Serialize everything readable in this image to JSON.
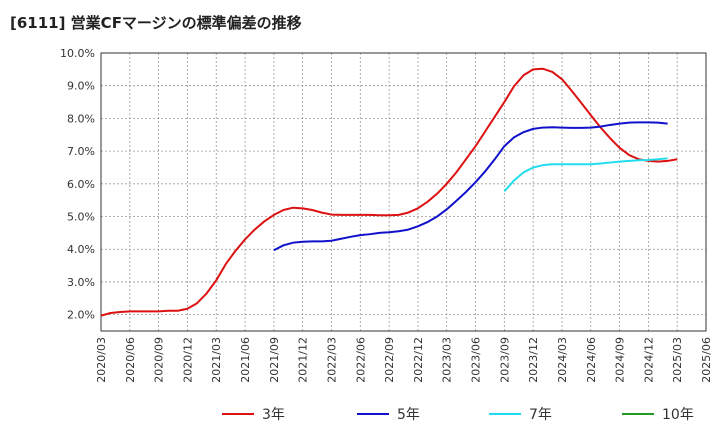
{
  "chart_data": {
    "type": "line",
    "title": "[6111]  営業CFマージンの標準偏差の推移",
    "xlabel": "",
    "ylabel": "",
    "ylim": [
      1.5,
      10.0
    ],
    "yticks": [
      "10.0%",
      "9.0%",
      "8.0%",
      "7.0%",
      "6.0%",
      "5.0%",
      "4.0%",
      "3.0%",
      "2.0%"
    ],
    "yticks_values": [
      10,
      9,
      8,
      7,
      6,
      5,
      4,
      3,
      2
    ],
    "xticks": [
      "2020/03",
      "2020/06",
      "2020/09",
      "2020/12",
      "2021/03",
      "2021/06",
      "2021/09",
      "2021/12",
      "2022/03",
      "2022/06",
      "2022/09",
      "2022/12",
      "2023/03",
      "2023/06",
      "2023/09",
      "2023/12",
      "2024/03",
      "2024/06",
      "2024/09",
      "2024/12",
      "2025/03",
      "2025/06"
    ],
    "grid": true,
    "legend_position": "bottom",
    "series": [
      {
        "name": "3年",
        "color": "#dd1111",
        "start_index": 0,
        "values": [
          1.97,
          2.05,
          2.08,
          2.1,
          2.1,
          2.1,
          2.1,
          2.12,
          2.12,
          2.18,
          2.35,
          2.65,
          3.05,
          3.55,
          3.95,
          4.3,
          4.6,
          4.85,
          5.05,
          5.2,
          5.27,
          5.25,
          5.2,
          5.12,
          5.06,
          5.05,
          5.05,
          5.05,
          5.05,
          5.04,
          5.04,
          5.05,
          5.12,
          5.25,
          5.45,
          5.7,
          6.0,
          6.35,
          6.75,
          7.15,
          7.6,
          8.05,
          8.5,
          8.98,
          9.32,
          9.5,
          9.52,
          9.42,
          9.2,
          8.85,
          8.48,
          8.1,
          7.73,
          7.4,
          7.1,
          6.88,
          6.75,
          6.7,
          6.68,
          6.7,
          6.75
        ]
      },
      {
        "name": "5年",
        "color": "#1111cc",
        "start_index": 18,
        "values": [
          3.97,
          4.12,
          4.2,
          4.23,
          4.24,
          4.24,
          4.26,
          4.32,
          4.38,
          4.43,
          4.46,
          4.5,
          4.52,
          4.55,
          4.6,
          4.7,
          4.83,
          5.0,
          5.22,
          5.48,
          5.75,
          6.05,
          6.38,
          6.75,
          7.15,
          7.42,
          7.58,
          7.68,
          7.72,
          7.73,
          7.72,
          7.71,
          7.71,
          7.72,
          7.75,
          7.8,
          7.84,
          7.87,
          7.88,
          7.88,
          7.87,
          7.84
        ]
      },
      {
        "name": "7年",
        "color": "#22ddee",
        "start_index": 42,
        "values": [
          5.77,
          6.1,
          6.35,
          6.5,
          6.57,
          6.6,
          6.6,
          6.6,
          6.6,
          6.6,
          6.62,
          6.65,
          6.68,
          6.7,
          6.72,
          6.73,
          6.75,
          6.78
        ]
      },
      {
        "name": "10年",
        "color": "#229922",
        "start_index": 60,
        "values": []
      }
    ]
  }
}
